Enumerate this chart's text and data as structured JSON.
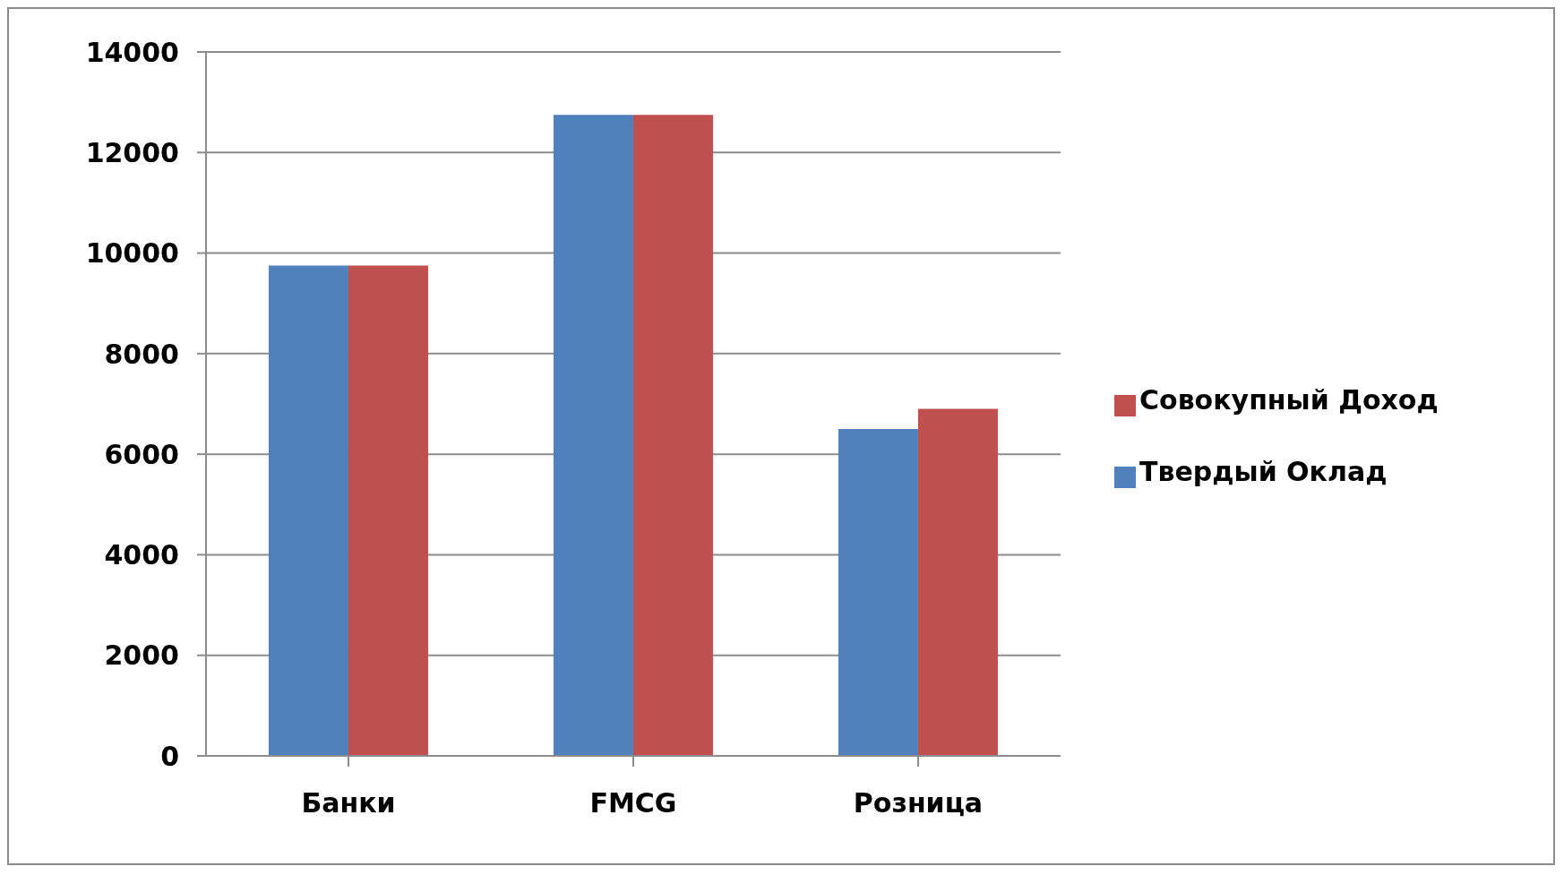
{
  "chart_data": {
    "type": "bar",
    "categories": [
      "Банки",
      "FMCG",
      "Розница"
    ],
    "series": [
      {
        "name": "Твердый Оклад",
        "color": "#4f81bd",
        "values": [
          9750,
          12750,
          6500
        ]
      },
      {
        "name": "Совокупный Доход",
        "color": "#c0504d",
        "values": [
          9750,
          12750,
          6900
        ]
      }
    ],
    "ylim": [
      0,
      14000
    ],
    "yticks": [
      0,
      2000,
      4000,
      6000,
      8000,
      10000,
      12000,
      14000
    ],
    "grid": "y",
    "legend": "right"
  }
}
